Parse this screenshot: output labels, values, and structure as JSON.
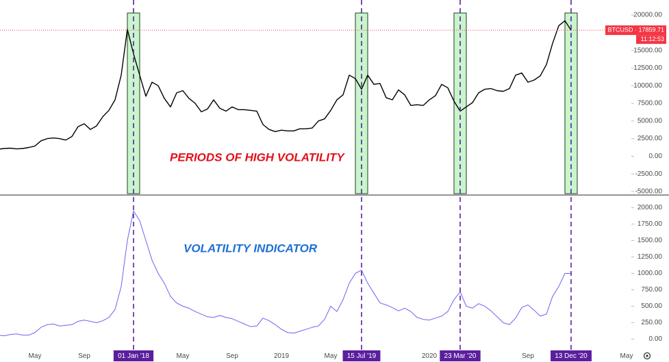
{
  "chart_data": {
    "type": "line",
    "categories": [
      null,
      null,
      null,
      null,
      null,
      null,
      "May",
      null,
      null,
      null,
      null,
      null,
      null,
      null,
      "Sep",
      null,
      null,
      null,
      null,
      null,
      null,
      null,
      "01 Jan '18",
      null,
      null,
      null,
      null,
      null,
      null,
      null,
      "May",
      null,
      null,
      null,
      null,
      null,
      null,
      null,
      "Sep",
      null,
      null,
      null,
      null,
      null,
      null,
      null,
      "2019",
      null,
      null,
      null,
      null,
      null,
      null,
      null,
      "May",
      null,
      null,
      null,
      null,
      "15 Jul '19",
      null,
      null,
      null,
      null,
      null,
      null,
      null,
      null,
      null,
      null,
      "2020",
      null,
      null,
      null,
      null,
      "23 Mar '20",
      null,
      null,
      null,
      null,
      null,
      null,
      null,
      null,
      null,
      null,
      "Sep",
      null,
      null,
      null,
      null,
      null,
      null,
      "13 Dec '20",
      null,
      null,
      null,
      null,
      null,
      null,
      null,
      null,
      "May",
      null,
      null
    ],
    "highlights": [
      22,
      59,
      75,
      93
    ],
    "highlight_color": "#c8f5cc",
    "event_line_color": "#5b1f9e",
    "panes": [
      {
        "annotation": "PERIODS OF HIGH VOLATILITY",
        "annotation_color": "#e3101a",
        "ylim": [
          -5390,
          22140
        ],
        "yticks": [
          {
            "value": -5000,
            "label": "-5000.00"
          },
          {
            "value": -2500,
            "label": "-2500.00"
          },
          {
            "value": 0,
            "label": "0.00"
          },
          {
            "value": 2500,
            "label": "2500.00"
          },
          {
            "value": 5000,
            "label": "5000.00"
          },
          {
            "value": 7500,
            "label": "7500.00"
          },
          {
            "value": 10000,
            "label": "10000.00"
          },
          {
            "value": 12500,
            "label": "12500.00"
          },
          {
            "value": 15000,
            "label": "15000.00"
          },
          {
            "value": 17500,
            "label": "17500.00"
          },
          {
            "value": 20000,
            "label": "20000.00"
          }
        ],
        "last_price": 17859.71,
        "last_price_label": "BTCUSD · 17859.71",
        "countdown": "11:12:53",
        "price_color": "#f23645",
        "series": [
          {
            "name": "BTCUSD",
            "color": "#000000",
            "values": [
              1000,
              1100,
              1150,
              1050,
              1100,
              1250,
              1450,
              2200,
              2500,
              2600,
              2500,
              2300,
              2800,
              4200,
              4600,
              3800,
              4300,
              5600,
              6500,
              8000,
              11500,
              18000,
              14500,
              11500,
              8500,
              10500,
              10000,
              8200,
              7000,
              9000,
              9300,
              8200,
              7500,
              6300,
              6700,
              8000,
              6800,
              6400,
              7000,
              6600,
              6600,
              6500,
              6400,
              4500,
              3800,
              3500,
              3700,
              3600,
              3600,
              3900,
              3900,
              4000,
              5000,
              5300,
              6500,
              8000,
              8700,
              11500,
              11000,
              9500,
              11500,
              10200,
              10300,
              8300,
              8000,
              9400,
              8700,
              7200,
              7300,
              7200,
              8000,
              8600,
              10200,
              9700,
              7800,
              6400,
              7000,
              7600,
              9000,
              9500,
              9600,
              9300,
              9200,
              9600,
              11500,
              11800,
              10500,
              10800,
              11400,
              13000,
              16000,
              18500,
              19200,
              17860,
              null,
              null,
              null,
              null,
              null,
              null,
              null,
              null,
              null,
              null,
              null
            ]
          }
        ]
      },
      {
        "annotation": "VOLATILITY INDICATOR",
        "annotation_color": "#1f6fd6",
        "ylim": [
          -150,
          2170
        ],
        "yticks": [
          {
            "value": 0,
            "label": "0.00"
          },
          {
            "value": 250,
            "label": "250.00"
          },
          {
            "value": 500,
            "label": "500.00"
          },
          {
            "value": 750,
            "label": "750.00"
          },
          {
            "value": 1000,
            "label": "1000.00"
          },
          {
            "value": 1250,
            "label": "1250.00"
          },
          {
            "value": 1500,
            "label": "1500.00"
          },
          {
            "value": 1750,
            "label": "1750.00"
          },
          {
            "value": 2000,
            "label": "2000.00"
          }
        ],
        "series": [
          {
            "name": "Volatility",
            "color": "#6b63f0",
            "values": [
              60,
              50,
              70,
              80,
              60,
              60,
              100,
              180,
              220,
              230,
              200,
              210,
              220,
              270,
              290,
              270,
              250,
              280,
              330,
              450,
              800,
              1500,
              1950,
              1800,
              1500,
              1200,
              1000,
              850,
              650,
              550,
              500,
              470,
              420,
              380,
              340,
              330,
              360,
              330,
              310,
              270,
              230,
              190,
              200,
              320,
              280,
              220,
              150,
              100,
              90,
              120,
              150,
              180,
              200,
              300,
              500,
              420,
              600,
              850,
              1000,
              1050,
              850,
              700,
              550,
              520,
              480,
              430,
              470,
              420,
              330,
              300,
              290,
              320,
              350,
              420,
              600,
              720,
              500,
              470,
              540,
              500,
              430,
              340,
              250,
              220,
              320,
              480,
              520,
              440,
              350,
              380,
              650,
              800,
              1000,
              1000,
              null,
              null,
              null,
              null,
              null,
              null,
              null,
              null,
              null,
              null,
              null
            ]
          }
        ]
      }
    ]
  }
}
